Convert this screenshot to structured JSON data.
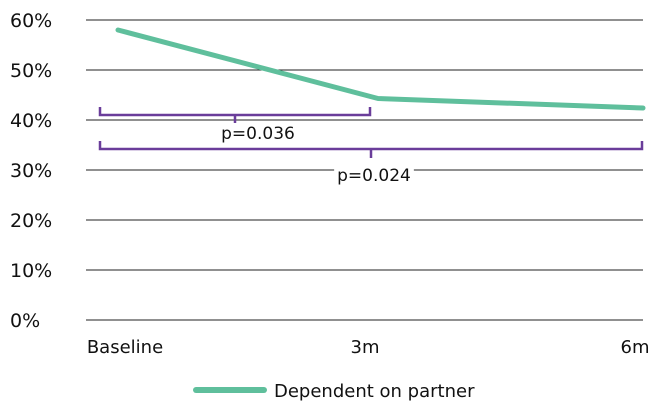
{
  "chart_data": {
    "type": "line",
    "categories": [
      "Baseline",
      "3m",
      "6m"
    ],
    "series": [
      {
        "name": "Dependent on partner",
        "values": [
          58,
          44.3,
          42.4
        ]
      }
    ],
    "ylim": [
      0,
      60
    ],
    "yticks": [
      0,
      10,
      20,
      30,
      40,
      50,
      60
    ],
    "ytick_labels": [
      "0%",
      "10%",
      "20%",
      "30%",
      "40%",
      "50%",
      "60%"
    ],
    "grid": true,
    "legend_position": "bottom-center",
    "annotations": [
      {
        "from": "Baseline",
        "to": "3m",
        "label": "p=0.036"
      },
      {
        "from": "Baseline",
        "to": "6m",
        "label": "p=0.024"
      }
    ],
    "colors": {
      "series": "#5fbf9c",
      "bracket": "#6a3d9a",
      "grid": "#222222"
    }
  }
}
